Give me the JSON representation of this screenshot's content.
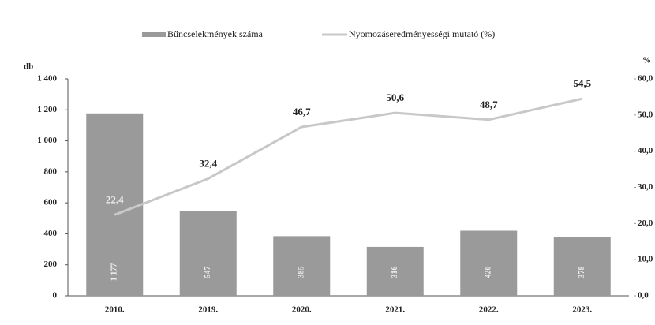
{
  "chart_data": {
    "type": "bar_line",
    "categories": [
      "2010.",
      "2019.",
      "2020.",
      "2021.",
      "2022.",
      "2023."
    ],
    "series": [
      {
        "name": "Bűncselekmények száma",
        "color": "#9a9a9a",
        "type": "bar",
        "values": [
          1177,
          547,
          385,
          316,
          420,
          378
        ],
        "value_labels": [
          "1 177",
          "547",
          "385",
          "316",
          "420",
          "378"
        ]
      },
      {
        "name": "Nyomozáseredményességi mutató (%)",
        "color": "#c8c8c8",
        "type": "line",
        "axis": "y2",
        "values": [
          22.4,
          32.4,
          46.7,
          50.6,
          48.7,
          54.5
        ],
        "value_labels": [
          "22,4",
          "32,4",
          "46,7",
          "50,6",
          "48,7",
          "54,5"
        ]
      }
    ],
    "ylabel": "db",
    "y2label": "%",
    "ylim": [
      0,
      1400
    ],
    "yticks": [
      0,
      200,
      400,
      600,
      800,
      {
        "value": 1000,
        "label": "1 000"
      },
      {
        "value": 1200,
        "label": "1 200"
      },
      {
        "value": 1400,
        "label": "1 400"
      }
    ],
    "y2lim": [
      0,
      60
    ],
    "y2ticks": [
      {
        "value": 0,
        "label": "0,0"
      },
      {
        "value": 10,
        "label": "10,0"
      },
      {
        "value": 20,
        "label": "20,0"
      },
      {
        "value": 30,
        "label": "30,0"
      },
      {
        "value": 40,
        "label": "40,0"
      },
      {
        "value": 50,
        "label": "50,0"
      },
      {
        "value": 60,
        "label": "60,0"
      }
    ]
  }
}
